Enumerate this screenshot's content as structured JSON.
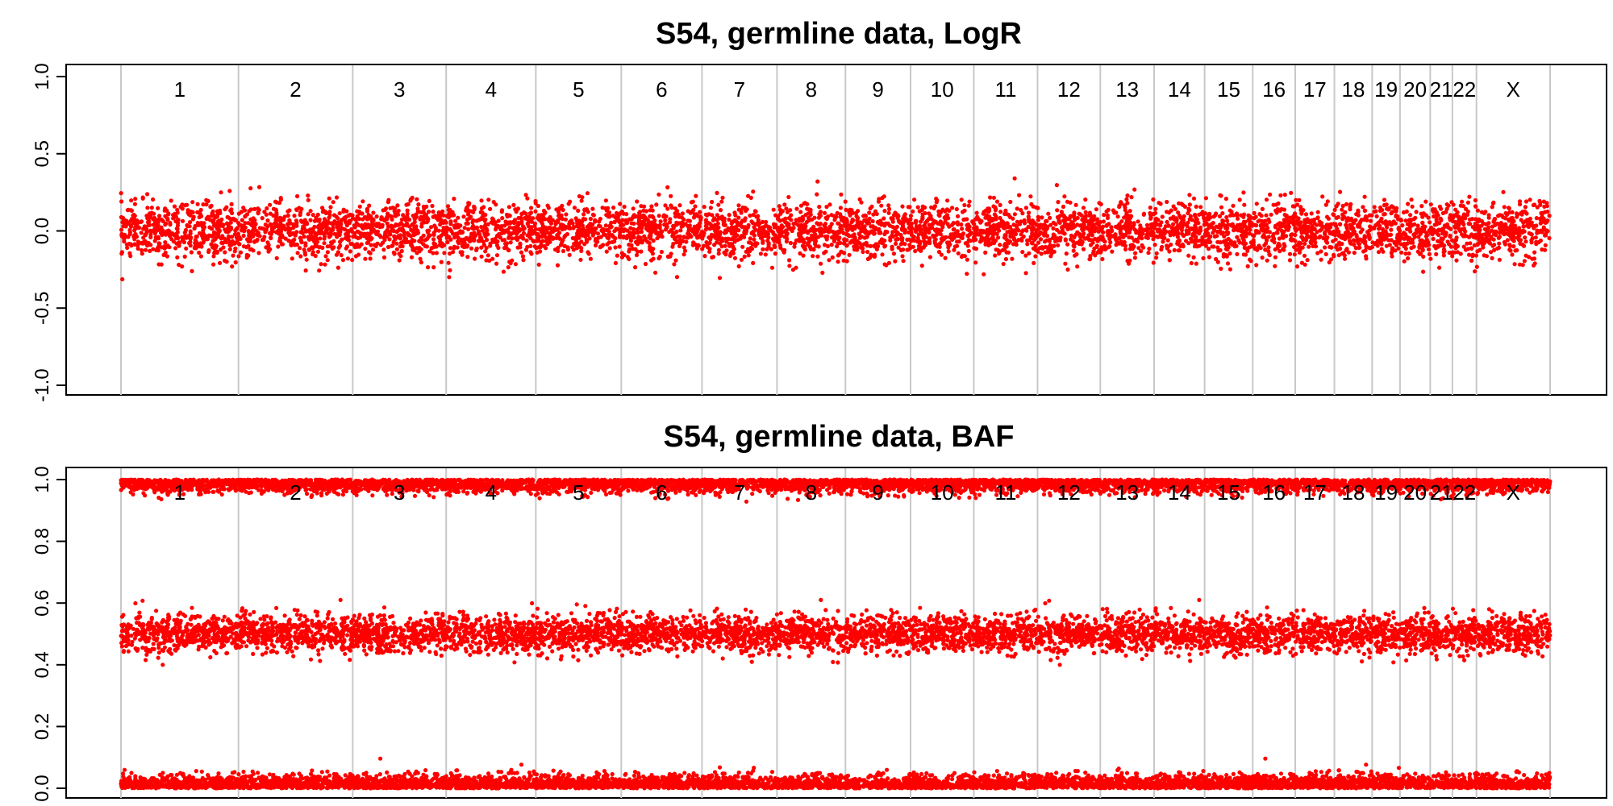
{
  "chart_data": [
    {
      "type": "scatter",
      "title": "S54, germline data, LogR",
      "xlabel": "",
      "ylabel": "",
      "ylim": [
        -1.0,
        1.0
      ],
      "yticks": [
        "-1.0",
        "-0.5",
        "0.0",
        "0.5",
        "1.0"
      ],
      "grid": false,
      "point_color": "#ff0000",
      "chromosomes": [
        "1",
        "2",
        "3",
        "4",
        "5",
        "6",
        "7",
        "8",
        "9",
        "10",
        "11",
        "12",
        "13",
        "14",
        "15",
        "16",
        "17",
        "18",
        "19",
        "20",
        "21",
        "22",
        "X"
      ],
      "chromosome_sizes_mb": [
        249,
        242,
        198,
        190,
        181,
        171,
        159,
        145,
        138,
        134,
        135,
        133,
        114,
        107,
        102,
        90,
        83,
        80,
        59,
        64,
        47,
        51,
        156
      ],
      "series": [
        {
          "bands": [
            {
              "center": 0.0,
              "spread": 0.09,
              "outlier_range": [
                -0.36,
                0.37
              ]
            }
          ]
        }
      ]
    },
    {
      "type": "scatter",
      "title": "S54, germline data, BAF",
      "xlabel": "",
      "ylabel": "",
      "ylim": [
        0.0,
        1.0
      ],
      "yticks": [
        "0.0",
        "0.2",
        "0.4",
        "0.6",
        "0.8",
        "1.0"
      ],
      "grid": false,
      "point_color": "#ff0000",
      "chromosomes": [
        "1",
        "2",
        "3",
        "4",
        "5",
        "6",
        "7",
        "8",
        "9",
        "10",
        "11",
        "12",
        "13",
        "14",
        "15",
        "16",
        "17",
        "18",
        "19",
        "20",
        "21",
        "22",
        "X"
      ],
      "chromosome_sizes_mb": [
        249,
        242,
        198,
        190,
        181,
        171,
        159,
        145,
        138,
        134,
        135,
        133,
        114,
        107,
        102,
        90,
        83,
        80,
        59,
        64,
        47,
        51,
        156
      ],
      "series": [
        {
          "bands": [
            {
              "center": 0.0,
              "spread": 0.02,
              "range": [
                0.0,
                0.1
              ]
            },
            {
              "center": 0.5,
              "spread": 0.03,
              "range": [
                0.4,
                0.61
              ]
            },
            {
              "center": 1.0,
              "spread": 0.02,
              "range": [
                0.9,
                1.0
              ]
            }
          ]
        }
      ]
    }
  ]
}
